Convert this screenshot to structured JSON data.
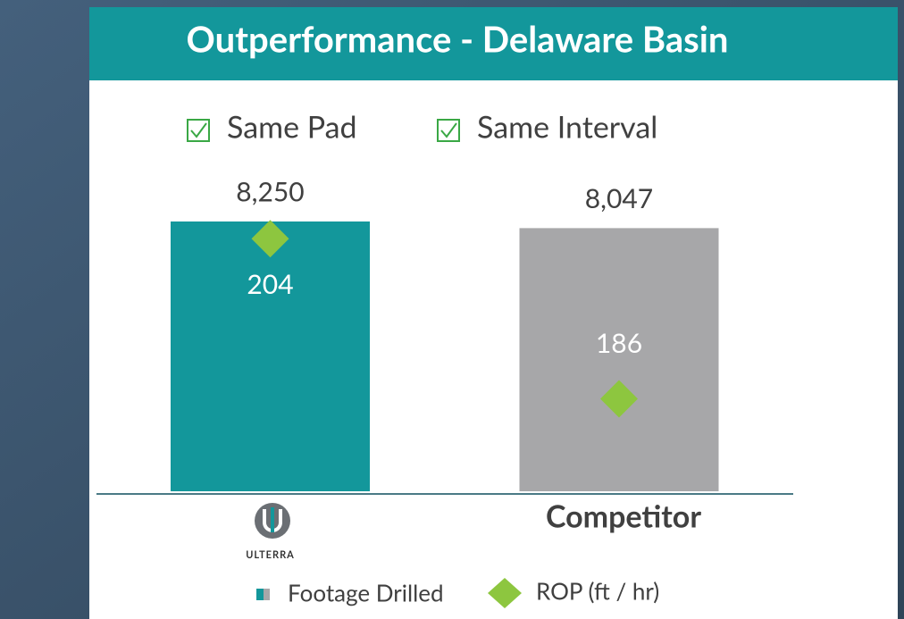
{
  "chart_data": {
    "type": "bar",
    "title": "Outperformance - Delaware Basin",
    "checks": [
      "Same Pad",
      "Same Interval"
    ],
    "categories": [
      "ULTERRA",
      "Competitor"
    ],
    "ylim": [
      0,
      9000
    ],
    "y2lim": [
      175.6,
      208.7
    ],
    "series": [
      {
        "name": "Footage Drilled",
        "type": "bar",
        "colors": [
          "#13979b",
          "#a7a7a9"
        ],
        "values": [
          8250,
          8047
        ],
        "value_labels": [
          "8,250",
          "8,047"
        ]
      },
      {
        "name": "ROP (ft / hr)",
        "type": "scatter",
        "axis": "y2",
        "color": "#8dc63f",
        "values": [
          204,
          186
        ]
      }
    ]
  }
}
